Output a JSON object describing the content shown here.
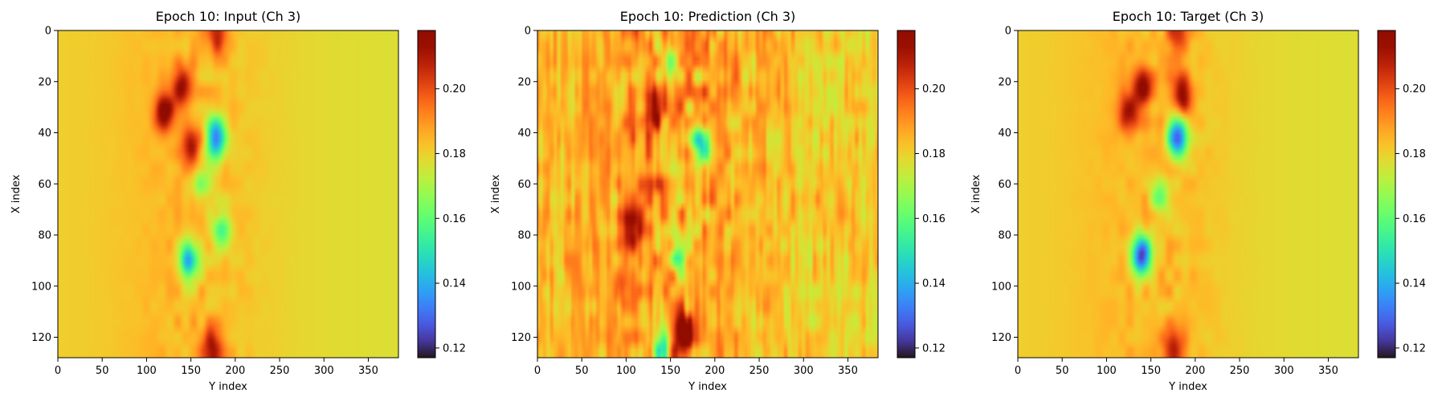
{
  "chart_data": [
    {
      "type": "heatmap",
      "title": "Epoch 10: Input (Ch 3)",
      "xlabel": "Y index",
      "ylabel": "X index",
      "x_ticks": [
        0,
        50,
        100,
        150,
        200,
        250,
        300,
        350
      ],
      "y_ticks": [
        0,
        20,
        40,
        60,
        80,
        100,
        120
      ],
      "x_range": [
        0,
        384
      ],
      "y_range": [
        0,
        128
      ],
      "colorbar": {
        "colormap": "turbo",
        "range": [
          0.117,
          0.218
        ],
        "ticks": [
          "0.12",
          "0.14",
          "0.16",
          "0.18",
          "0.20"
        ],
        "tick_values": [
          0.12,
          0.14,
          0.16,
          0.18,
          0.2
        ]
      },
      "background_value": 0.18,
      "features": [
        {
          "kind": "ridge",
          "x": 180,
          "y": 0,
          "value": 0.205
        },
        {
          "kind": "high",
          "x": 140,
          "y": 22,
          "value": 0.212
        },
        {
          "kind": "high",
          "x": 120,
          "y": 32,
          "value": 0.214
        },
        {
          "kind": "high",
          "x": 150,
          "y": 45,
          "value": 0.205
        },
        {
          "kind": "low",
          "x": 178,
          "y": 42,
          "value": 0.13
        },
        {
          "kind": "low",
          "x": 160,
          "y": 60,
          "value": 0.16
        },
        {
          "kind": "low",
          "x": 148,
          "y": 90,
          "value": 0.135
        },
        {
          "kind": "low",
          "x": 185,
          "y": 78,
          "value": 0.155
        },
        {
          "kind": "ridge",
          "x": 175,
          "y": 125,
          "value": 0.208
        }
      ]
    },
    {
      "type": "heatmap",
      "title": "Epoch 10: Prediction (Ch 3)",
      "xlabel": "Y index",
      "ylabel": "X index",
      "x_ticks": [
        0,
        50,
        100,
        150,
        200,
        250,
        300,
        350
      ],
      "y_ticks": [
        0,
        20,
        40,
        60,
        80,
        100,
        120
      ],
      "x_range": [
        0,
        384
      ],
      "y_range": [
        0,
        128
      ],
      "colorbar": {
        "colormap": "turbo",
        "range": [
          0.117,
          0.218
        ],
        "ticks": [
          "0.12",
          "0.14",
          "0.16",
          "0.18",
          "0.20"
        ],
        "tick_values": [
          0.12,
          0.14,
          0.16,
          0.18,
          0.2
        ]
      },
      "background_value": 0.184,
      "features": [
        {
          "kind": "high",
          "x": 130,
          "y": 30,
          "value": 0.212
        },
        {
          "kind": "high",
          "x": 105,
          "y": 78,
          "value": 0.215
        },
        {
          "kind": "high",
          "x": 165,
          "y": 120,
          "value": 0.216
        },
        {
          "kind": "high",
          "x": 95,
          "y": 100,
          "value": 0.2
        },
        {
          "kind": "low",
          "x": 185,
          "y": 45,
          "value": 0.15
        },
        {
          "kind": "low",
          "x": 160,
          "y": 85,
          "value": 0.155
        },
        {
          "kind": "low",
          "x": 150,
          "y": 12,
          "value": 0.158
        },
        {
          "kind": "low",
          "x": 140,
          "y": 125,
          "value": 0.15
        }
      ]
    },
    {
      "type": "heatmap",
      "title": "Epoch 10: Target (Ch 3)",
      "xlabel": "Y index",
      "ylabel": "X index",
      "x_ticks": [
        0,
        50,
        100,
        150,
        200,
        250,
        300,
        350
      ],
      "y_ticks": [
        0,
        20,
        40,
        60,
        80,
        100,
        120
      ],
      "x_range": [
        0,
        384
      ],
      "y_range": [
        0,
        128
      ],
      "colorbar": {
        "colormap": "turbo",
        "range": [
          0.117,
          0.218
        ],
        "ticks": [
          "0.12",
          "0.14",
          "0.16",
          "0.18",
          "0.20"
        ],
        "tick_values": [
          0.12,
          0.14,
          0.16,
          0.18,
          0.2
        ]
      },
      "background_value": 0.18,
      "features": [
        {
          "kind": "ridge",
          "x": 180,
          "y": 0,
          "value": 0.205
        },
        {
          "kind": "high",
          "x": 140,
          "y": 22,
          "value": 0.212
        },
        {
          "kind": "high",
          "x": 185,
          "y": 25,
          "value": 0.215
        },
        {
          "kind": "high",
          "x": 125,
          "y": 32,
          "value": 0.208
        },
        {
          "kind": "low",
          "x": 180,
          "y": 42,
          "value": 0.12
        },
        {
          "kind": "low",
          "x": 160,
          "y": 65,
          "value": 0.16
        },
        {
          "kind": "low",
          "x": 140,
          "y": 88,
          "value": 0.118
        },
        {
          "kind": "ridge",
          "x": 175,
          "y": 125,
          "value": 0.208
        }
      ]
    }
  ]
}
